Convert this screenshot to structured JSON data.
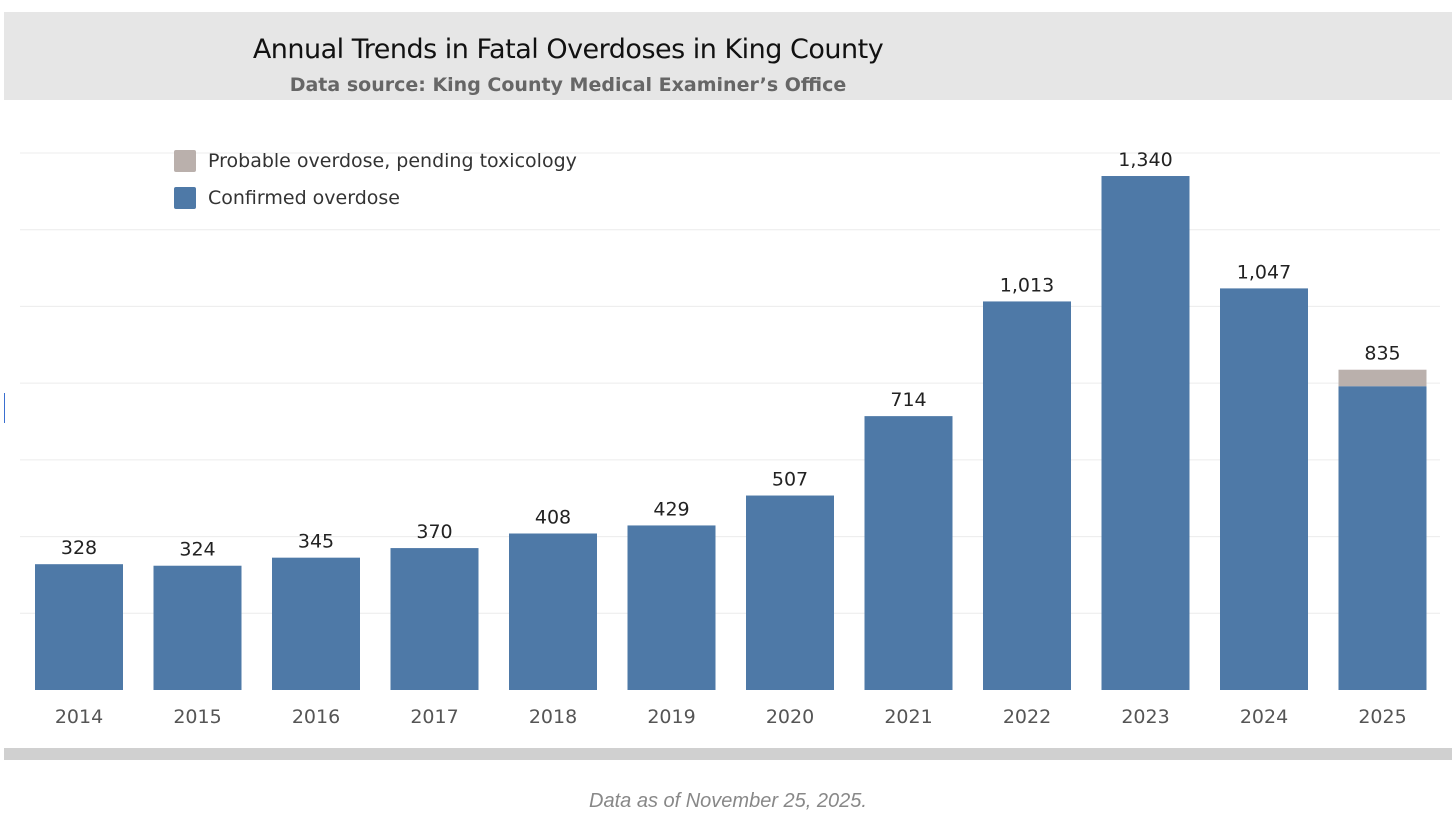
{
  "header": {
    "title": "Annual Trends in Fatal Overdoses in King County",
    "subtitle": "Data source: King County Medical Examiner’s Office"
  },
  "footer": "Data as of November 25, 2025.",
  "colors": {
    "confirmed": "#4e79a7",
    "probable": "#bab0ac",
    "grid": "#ececec"
  },
  "chart_data": {
    "type": "bar",
    "stacked": true,
    "title": "Annual Trends in Fatal Overdoses in King County",
    "subtitle": "Data source: King County Medical Examiner’s Office",
    "xlabel": "",
    "ylabel": "",
    "ylim": [
      0,
      1400
    ],
    "grid": true,
    "legend_position": "top-left",
    "categories": [
      "2014",
      "2015",
      "2016",
      "2017",
      "2018",
      "2019",
      "2020",
      "2021",
      "2022",
      "2023",
      "2024",
      "2025"
    ],
    "series": [
      {
        "name": "Confirmed overdose",
        "values": [
          328,
          324,
          345,
          370,
          408,
          429,
          507,
          714,
          1013,
          1340,
          1047,
          792
        ]
      },
      {
        "name": "Probable overdose, pending toxicology",
        "values": [
          0,
          0,
          0,
          0,
          0,
          0,
          0,
          0,
          0,
          0,
          0,
          43
        ]
      }
    ],
    "totals": [
      "328",
      "324",
      "345",
      "370",
      "408",
      "429",
      "507",
      "714",
      "1,013",
      "1,340",
      "1,047",
      "835"
    ],
    "legend": [
      "Probable overdose, pending toxicology",
      "Confirmed overdose"
    ]
  }
}
